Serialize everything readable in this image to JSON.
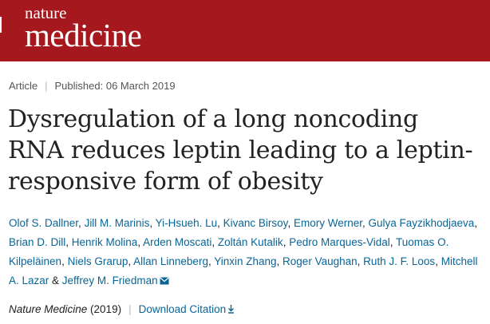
{
  "header": {
    "logo_top": "nature",
    "logo_main": "medicine",
    "brand_color": "#a5181d"
  },
  "meta": {
    "type": "Article",
    "published": "Published: 06 March 2019"
  },
  "article": {
    "title": "Dysregulation of a long noncoding RNA reduces leptin leading to a leptin-responsive form of obesity"
  },
  "authors": [
    "Olof S. Dallner",
    "Jill M. Marinis",
    "Yi-Hsueh. Lu",
    "Kivanc Birsoy",
    "Emory Werner",
    "Gulya Fayzikhodjaeva",
    "Brian D. Dill",
    "Henrik Molina",
    "Arden Moscati",
    "Zoltán Kutalik",
    "Pedro Marques-Vidal",
    "Tuomas O. Kilpeläinen",
    "Niels Grarup",
    "Allan Linneberg",
    "Yinxin Zhang",
    "Roger Vaughan",
    "Ruth J. F. Loos",
    "Mitchell A. Lazar",
    "Jeffrey M. Friedman"
  ],
  "authors_sep": {
    "comma": ", ",
    "and": " & "
  },
  "icons": {
    "mail": "envelope-icon",
    "download": "download-arrow-icon"
  },
  "citation": {
    "journal": "Nature Medicine",
    "year": " (2019)",
    "download": "Download Citation"
  }
}
